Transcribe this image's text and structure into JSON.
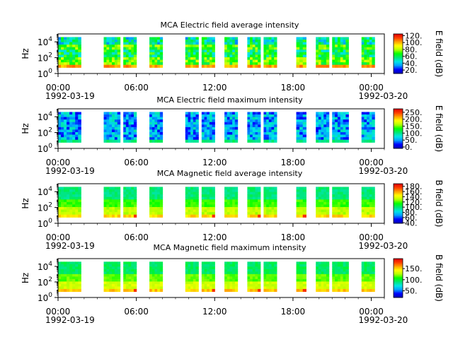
{
  "chart_data": [
    {
      "type": "heatmap",
      "title": "MCA  Electric field average intensity",
      "ylabel": "Hz",
      "yscale": "log",
      "ylim": [
        1,
        100000
      ],
      "y_ticks": [
        {
          "base": "10",
          "exp": "0"
        },
        {
          "base": "10",
          "exp": "2"
        },
        {
          "base": "10",
          "exp": "4"
        }
      ],
      "xlim": [
        "1992-03-19 00:00",
        "1992-03-20 01:00"
      ],
      "x_ticks": [
        "00:00",
        "06:00",
        "12:00",
        "18:00",
        "00:00"
      ],
      "x_date_labels": [
        "1992-03-19",
        "1992-03-20"
      ],
      "colorbar": {
        "label": "E field (dB)",
        "ticks": [
          "20.",
          "40.",
          "60.",
          "80.",
          "100.",
          "120."
        ],
        "range": [
          10,
          125
        ]
      },
      "data_intervals": [
        [
          "00:00",
          "01:45"
        ],
        [
          "03:30",
          "04:45"
        ],
        [
          "05:00",
          "06:00"
        ],
        [
          "07:00",
          "08:00"
        ],
        [
          "09:45",
          "10:45"
        ],
        [
          "11:00",
          "12:00"
        ],
        [
          "12:45",
          "13:45"
        ],
        [
          "14:30",
          "15:30"
        ],
        [
          "15:45",
          "16:45"
        ],
        [
          "18:15",
          "19:00"
        ],
        [
          "19:45",
          "20:45"
        ],
        [
          "21:00",
          "22:15"
        ],
        [
          "23:15",
          "24:15"
        ]
      ]
    },
    {
      "type": "heatmap",
      "title": "MCA  Electric field maximum intensity",
      "ylabel": "Hz",
      "yscale": "log",
      "ylim": [
        1,
        100000
      ],
      "y_ticks": [
        {
          "base": "10",
          "exp": "0"
        },
        {
          "base": "10",
          "exp": "2"
        },
        {
          "base": "10",
          "exp": "4"
        }
      ],
      "xlim": [
        "1992-03-19 00:00",
        "1992-03-20 01:00"
      ],
      "x_ticks": [
        "00:00",
        "06:00",
        "12:00",
        "18:00",
        "00:00"
      ],
      "x_date_labels": [
        "1992-03-19",
        "1992-03-20"
      ],
      "colorbar": {
        "label": "E field (dB)",
        "ticks": [
          "0.",
          "50.",
          "100.",
          "150.",
          "200.",
          "250."
        ],
        "range": [
          -10,
          275
        ]
      },
      "data_intervals": [
        [
          "00:00",
          "01:45"
        ],
        [
          "03:30",
          "04:45"
        ],
        [
          "05:00",
          "06:00"
        ],
        [
          "07:00",
          "08:00"
        ],
        [
          "09:45",
          "10:45"
        ],
        [
          "11:00",
          "12:00"
        ],
        [
          "12:45",
          "13:45"
        ],
        [
          "14:30",
          "15:30"
        ],
        [
          "15:45",
          "16:45"
        ],
        [
          "18:15",
          "19:00"
        ],
        [
          "19:45",
          "20:45"
        ],
        [
          "21:00",
          "22:15"
        ],
        [
          "23:15",
          "24:15"
        ]
      ]
    },
    {
      "type": "heatmap",
      "title": "MCA  Magnetic field average intensity",
      "ylabel": "Hz",
      "yscale": "log",
      "ylim": [
        1,
        100000
      ],
      "y_ticks": [
        {
          "base": "10",
          "exp": "0"
        },
        {
          "base": "10",
          "exp": "2"
        },
        {
          "base": "10",
          "exp": "4"
        }
      ],
      "xlim": [
        "1992-03-19 00:00",
        "1992-03-20 01:00"
      ],
      "x_ticks": [
        "00:00",
        "06:00",
        "12:00",
        "18:00",
        "00:00"
      ],
      "x_date_labels": [
        "1992-03-19",
        "1992-03-20"
      ],
      "colorbar": {
        "label": "B field (dB)",
        "ticks": [
          "40.",
          "60.",
          "80.",
          "100.",
          "120.",
          "140.",
          "160.",
          "180."
        ],
        "range": [
          38,
          190
        ]
      },
      "data_intervals": [
        [
          "00:00",
          "01:45"
        ],
        [
          "03:30",
          "04:45"
        ],
        [
          "05:00",
          "06:00"
        ],
        [
          "07:00",
          "08:00"
        ],
        [
          "09:45",
          "10:45"
        ],
        [
          "11:00",
          "12:00"
        ],
        [
          "12:45",
          "13:45"
        ],
        [
          "14:30",
          "15:30"
        ],
        [
          "15:45",
          "16:45"
        ],
        [
          "18:15",
          "19:00"
        ],
        [
          "19:45",
          "20:45"
        ],
        [
          "21:00",
          "22:15"
        ],
        [
          "23:15",
          "24:15"
        ]
      ]
    },
    {
      "type": "heatmap",
      "title": "MCA  Magnetic field maximum intensity",
      "ylabel": "Hz",
      "yscale": "log",
      "ylim": [
        1,
        100000
      ],
      "y_ticks": [
        {
          "base": "10",
          "exp": "0"
        },
        {
          "base": "10",
          "exp": "2"
        },
        {
          "base": "10",
          "exp": "4"
        }
      ],
      "xlim": [
        "1992-03-19 00:00",
        "1992-03-20 01:00"
      ],
      "x_ticks": [
        "00:00",
        "06:00",
        "12:00",
        "18:00",
        "00:00"
      ],
      "x_date_labels": [
        "1992-03-19",
        "1992-03-20"
      ],
      "colorbar": {
        "label": "B field (dB)",
        "ticks": [
          "50.",
          "100.",
          "150."
        ],
        "range": [
          20,
          195
        ]
      },
      "data_intervals": [
        [
          "00:00",
          "01:45"
        ],
        [
          "03:30",
          "04:45"
        ],
        [
          "05:00",
          "06:00"
        ],
        [
          "07:00",
          "08:00"
        ],
        [
          "09:45",
          "10:45"
        ],
        [
          "11:00",
          "12:00"
        ],
        [
          "12:45",
          "13:45"
        ],
        [
          "14:30",
          "15:30"
        ],
        [
          "15:45",
          "16:45"
        ],
        [
          "18:15",
          "19:00"
        ],
        [
          "19:45",
          "20:45"
        ],
        [
          "21:00",
          "22:15"
        ],
        [
          "23:15",
          "24:15"
        ]
      ]
    }
  ],
  "colors": {
    "colormap": [
      "#0000b4",
      "#0000ff",
      "#00a0ff",
      "#00e6e6",
      "#00e678",
      "#00ff00",
      "#b4ff00",
      "#ffff00",
      "#ffa000",
      "#ff3c00",
      "#dc0000"
    ]
  }
}
